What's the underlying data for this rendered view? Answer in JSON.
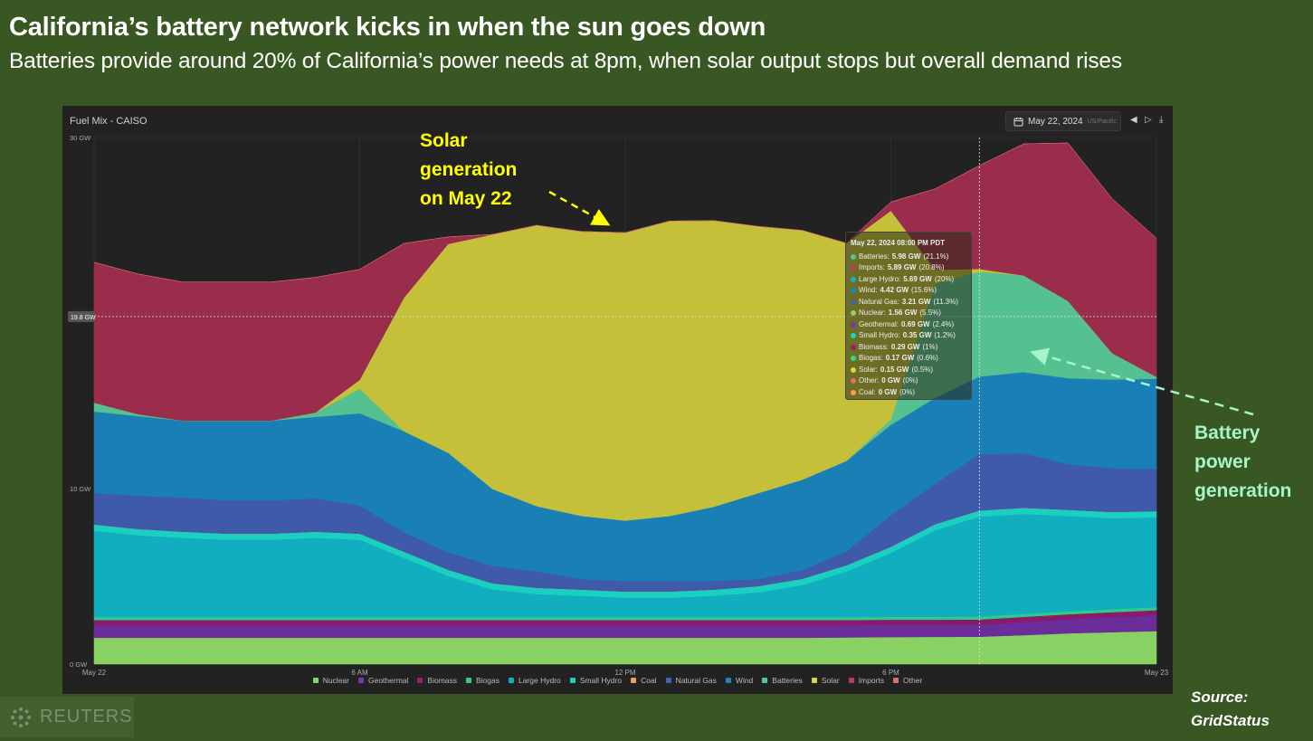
{
  "header": {
    "title": "California’s battery network kicks in when the sun goes down",
    "subtitle": "Batteries provide around 20% of California’s power needs at 8pm, when solar output stops but overall demand rises"
  },
  "panel": {
    "title": "Fuel Mix - CAISO",
    "date": "May 22, 2024",
    "timezone": "US/Pacific",
    "icons": [
      "calendar-icon",
      "chevron-left-icon",
      "chevron-right-icon",
      "download-icon"
    ]
  },
  "tooltip": {
    "header": "May 22, 2024 08:00 PM PDT",
    "rows": [
      {
        "name": "Batteries:",
        "value": "5.98 GW",
        "pct": "(21.1%)",
        "color": "#55c495"
      },
      {
        "name": "Imports:",
        "value": "5.89 GW",
        "pct": "(20.8%)",
        "color": "#b8405e"
      },
      {
        "name": "Large Hydro:",
        "value": "5.69 GW",
        "pct": "(20%)",
        "color": "#10b4c4"
      },
      {
        "name": "Wind:",
        "value": "4.42 GW",
        "pct": "(15.6%)",
        "color": "#1a86bd"
      },
      {
        "name": "Natural Gas:",
        "value": "3.21 GW",
        "pct": "(11.3%)",
        "color": "#4560b0"
      },
      {
        "name": "Nuclear:",
        "value": "1.56 GW",
        "pct": "(5.5%)",
        "color": "#8fd65e"
      },
      {
        "name": "Geothermal:",
        "value": "0.69 GW",
        "pct": "(2.4%)",
        "color": "#7a35b0"
      },
      {
        "name": "Small Hydro:",
        "value": "0.35 GW",
        "pct": "(1.2%)",
        "color": "#1ad4c4"
      },
      {
        "name": "Biomass:",
        "value": "0.29 GW",
        "pct": "(1%)",
        "color": "#9a1a78"
      },
      {
        "name": "Biogas:",
        "value": "0.17 GW",
        "pct": "(0.6%)",
        "color": "#2ed88c"
      },
      {
        "name": "Solar:",
        "value": "0.15 GW",
        "pct": "(0.5%)",
        "color": "#dcd83a"
      },
      {
        "name": "Other:",
        "value": "0 GW",
        "pct": "(0%)",
        "color": "#e07070"
      },
      {
        "name": "Coal:",
        "value": "0 GW",
        "pct": "(0%)",
        "color": "#f0a050"
      }
    ]
  },
  "chart_data": {
    "type": "area",
    "stacked": true,
    "title": "Fuel Mix - CAISO",
    "x_unit": "hour of day (May 22 00:00 to May 23 00:00)",
    "x": [
      0,
      1,
      2,
      3,
      4,
      5,
      6,
      7,
      8,
      9,
      10,
      11,
      12,
      13,
      14,
      15,
      16,
      17,
      18,
      19,
      20,
      21,
      22,
      23,
      24
    ],
    "x_ticks": [
      {
        "at": 0,
        "label": "May 22"
      },
      {
        "at": 6,
        "label": "6 AM"
      },
      {
        "at": 12,
        "label": "12 PM"
      },
      {
        "at": 18,
        "label": "6 PM"
      },
      {
        "at": 24,
        "label": "May 23"
      }
    ],
    "y_ticks": [
      {
        "at": 0,
        "label": "0 GW"
      },
      {
        "at": 10,
        "label": "10 GW"
      },
      {
        "at": 30,
        "label": "30 GW"
      }
    ],
    "ylim": [
      0,
      30
    ],
    "crosshair": {
      "x": 20,
      "y_label": "19.8 GW",
      "y": 19.8
    },
    "legend_position": "bottom",
    "series": [
      {
        "name": "Nuclear",
        "color": "#88d162",
        "values": [
          1.5,
          1.5,
          1.5,
          1.5,
          1.5,
          1.5,
          1.5,
          1.5,
          1.5,
          1.5,
          1.5,
          1.5,
          1.5,
          1.5,
          1.5,
          1.5,
          1.5,
          1.52,
          1.54,
          1.55,
          1.56,
          1.65,
          1.75,
          1.82,
          1.88
        ]
      },
      {
        "name": "Geothermal",
        "color": "#6a2d9a",
        "values": [
          0.72,
          0.72,
          0.72,
          0.72,
          0.72,
          0.72,
          0.72,
          0.72,
          0.72,
          0.72,
          0.72,
          0.72,
          0.72,
          0.72,
          0.72,
          0.72,
          0.72,
          0.7,
          0.7,
          0.69,
          0.69,
          0.75,
          0.8,
          0.85,
          0.9
        ]
      },
      {
        "name": "Biomass",
        "color": "#8a1a6a",
        "values": [
          0.29,
          0.29,
          0.29,
          0.29,
          0.29,
          0.29,
          0.29,
          0.29,
          0.29,
          0.29,
          0.29,
          0.29,
          0.29,
          0.29,
          0.29,
          0.29,
          0.29,
          0.29,
          0.29,
          0.29,
          0.29,
          0.29,
          0.29,
          0.29,
          0.29
        ]
      },
      {
        "name": "Biogas",
        "color": "#2ecc8a",
        "values": [
          0.17,
          0.17,
          0.17,
          0.17,
          0.17,
          0.17,
          0.17,
          0.17,
          0.17,
          0.17,
          0.17,
          0.17,
          0.17,
          0.17,
          0.17,
          0.17,
          0.17,
          0.17,
          0.17,
          0.17,
          0.17,
          0.17,
          0.17,
          0.17,
          0.17
        ]
      },
      {
        "name": "Large Hydro",
        "color": "#10aebf",
        "values": [
          4.92,
          4.66,
          4.51,
          4.4,
          4.4,
          4.51,
          4.4,
          3.37,
          2.34,
          1.57,
          1.31,
          1.21,
          1.1,
          1.1,
          1.21,
          1.41,
          1.83,
          2.6,
          3.63,
          4.92,
          5.69,
          5.69,
          5.43,
          5.18,
          5.12
        ]
      },
      {
        "name": "Small Hydro",
        "color": "#1ad0c0",
        "values": [
          0.35,
          0.35,
          0.35,
          0.35,
          0.35,
          0.35,
          0.35,
          0.35,
          0.35,
          0.35,
          0.35,
          0.35,
          0.35,
          0.35,
          0.35,
          0.35,
          0.35,
          0.35,
          0.35,
          0.35,
          0.35,
          0.35,
          0.35,
          0.35,
          0.35
        ]
      },
      {
        "name": "Coal",
        "color": "#f0a050",
        "values": [
          0,
          0,
          0,
          0,
          0,
          0,
          0,
          0,
          0,
          0,
          0,
          0,
          0,
          0,
          0,
          0,
          0,
          0,
          0,
          0,
          0,
          0,
          0,
          0,
          0
        ]
      },
      {
        "name": "Natural Gas",
        "color": "#3f5aa8",
        "values": [
          1.8,
          1.9,
          1.95,
          1.9,
          1.9,
          1.9,
          1.6,
          1.1,
          1.0,
          1.0,
          0.95,
          0.6,
          0.6,
          0.6,
          0.5,
          0.4,
          0.5,
          0.8,
          1.8,
          2.3,
          3.21,
          3.1,
          2.6,
          2.5,
          2.4
        ]
      },
      {
        "name": "Wind",
        "color": "#1a7fb5",
        "values": [
          4.64,
          4.54,
          4.38,
          4.54,
          4.54,
          4.64,
          5.26,
          5.77,
          5.67,
          4.38,
          3.71,
          3.61,
          3.45,
          3.71,
          4.23,
          4.9,
          5.15,
          5.15,
          5.15,
          4.9,
          4.42,
          4.64,
          4.9,
          5.05,
          5.15
        ]
      },
      {
        "name": "Batteries",
        "color": "#55c090",
        "values": [
          0.5,
          0.1,
          0,
          0,
          0,
          0.25,
          1.4,
          0,
          0,
          0,
          0,
          0,
          0,
          0,
          0,
          0,
          0,
          0,
          0.3,
          6.5,
          5.98,
          5.5,
          4.4,
          1.5,
          0.1
        ]
      },
      {
        "name": "Solar",
        "color": "#c4c03a",
        "values": [
          0,
          0,
          0,
          0,
          0,
          0,
          0.5,
          7.6,
          11.9,
          14.5,
          16.0,
          16.2,
          16.4,
          16.8,
          16.3,
          15.2,
          14.2,
          12.4,
          11.9,
          0.8,
          0.15,
          0,
          0,
          0,
          0
        ]
      },
      {
        "name": "Imports",
        "color": "#9a2d4c",
        "values": [
          8.0,
          7.99,
          7.9,
          7.9,
          7.9,
          7.7,
          6.3,
          3.1,
          0.4,
          0,
          0,
          0,
          0,
          0,
          0,
          0,
          0,
          0,
          0.5,
          4.6,
          5.89,
          7.5,
          9.0,
          8.8,
          7.9
        ]
      },
      {
        "name": "Other",
        "color": "#e07070",
        "values": [
          0,
          0,
          0,
          0,
          0,
          0,
          0,
          0,
          0,
          0,
          0,
          0,
          0,
          0,
          0,
          0,
          0,
          0,
          0,
          0,
          0,
          0,
          0,
          0,
          0
        ]
      }
    ]
  },
  "legend": [
    {
      "label": "Nuclear",
      "color": "#88d162"
    },
    {
      "label": "Geothermal",
      "color": "#7a35b0"
    },
    {
      "label": "Biomass",
      "color": "#9a1a78"
    },
    {
      "label": "Biogas",
      "color": "#2ecc8a"
    },
    {
      "label": "Large Hydro",
      "color": "#10aebf"
    },
    {
      "label": "Small Hydro",
      "color": "#1ad0c0"
    },
    {
      "label": "Coal",
      "color": "#f0a050"
    },
    {
      "label": "Natural Gas",
      "color": "#4560b0"
    },
    {
      "label": "Wind",
      "color": "#1a86bd"
    },
    {
      "label": "Batteries",
      "color": "#55c495"
    },
    {
      "label": "Solar",
      "color": "#dcd83a"
    },
    {
      "label": "Imports",
      "color": "#b8405e"
    },
    {
      "label": "Other",
      "color": "#e07070"
    }
  ],
  "annotations": {
    "solar": [
      "Solar",
      "generation",
      "on May 22"
    ],
    "battery": [
      "Battery",
      "power",
      "generation"
    ],
    "solar_color": "#ffff00",
    "battery_color": "#a5f5c9"
  },
  "footer": {
    "logo": "REUTERS",
    "source_line1": "Source:",
    "source_line2": "GridStatus"
  }
}
